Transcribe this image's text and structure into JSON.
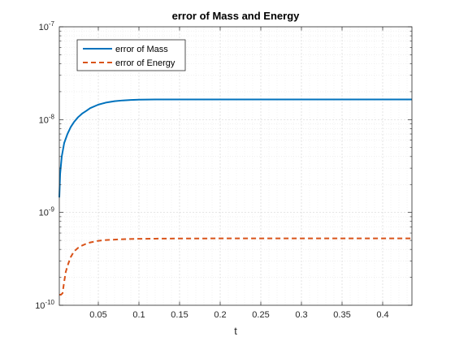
{
  "chart_data": {
    "type": "line",
    "title": "error of Mass and Energy",
    "xlabel": "t",
    "ylabel": "",
    "xlim": [
      0.002,
      0.436
    ],
    "ylim": [
      1e-10,
      1e-07
    ],
    "yscale": "log",
    "grid": true,
    "minor_grid": true,
    "legend_position": "top-left",
    "x_ticks": [
      0.05,
      0.1,
      0.15,
      0.2,
      0.25,
      0.3,
      0.35,
      0.4
    ],
    "x_tick_labels": [
      "0.05",
      "0.1",
      "0.15",
      "0.2",
      "0.25",
      "0.3",
      "0.35",
      "0.4"
    ],
    "y_ticks": [
      {
        "value": 1e-10,
        "base": "10",
        "exp": "-10"
      },
      {
        "value": 1e-09,
        "base": "10",
        "exp": "-9"
      },
      {
        "value": 1e-08,
        "base": "10",
        "exp": "-8"
      },
      {
        "value": 1e-07,
        "base": "10",
        "exp": "-7"
      }
    ],
    "series": [
      {
        "name": "error of Mass",
        "color": "#0072BD",
        "style": "solid",
        "x": [
          0.002,
          0.003,
          0.005,
          0.008,
          0.012,
          0.016,
          0.02,
          0.025,
          0.03,
          0.035,
          0.04,
          0.05,
          0.06,
          0.07,
          0.08,
          0.09,
          0.1,
          0.12,
          0.15,
          0.2,
          0.25,
          0.3,
          0.35,
          0.4,
          0.436
        ],
        "y": [
          1.45e-09,
          2.6e-09,
          4e-09,
          5.6e-09,
          7e-09,
          8.3e-09,
          9.4e-09,
          1.06e-08,
          1.16e-08,
          1.24e-08,
          1.33e-08,
          1.45e-08,
          1.53e-08,
          1.58e-08,
          1.61e-08,
          1.63e-08,
          1.64e-08,
          1.65e-08,
          1.65e-08,
          1.65e-08,
          1.65e-08,
          1.65e-08,
          1.65e-08,
          1.65e-08,
          1.65e-08
        ]
      },
      {
        "name": "error of Energy",
        "color": "#D95319",
        "style": "dashed",
        "x": [
          0.002,
          0.004,
          0.006,
          0.008,
          0.01,
          0.013,
          0.016,
          0.02,
          0.025,
          0.03,
          0.035,
          0.04,
          0.05,
          0.06,
          0.07,
          0.08,
          0.1,
          0.12,
          0.15,
          0.2,
          0.25,
          0.3,
          0.35,
          0.4,
          0.436
        ],
        "y": [
          1.3e-10,
          1.3e-10,
          1.35e-10,
          1.8e-10,
          2.3e-10,
          2.8e-10,
          3.3e-10,
          3.8e-10,
          4.15e-10,
          4.4e-10,
          4.6e-10,
          4.75e-10,
          4.95e-10,
          5.05e-10,
          5.1e-10,
          5.15e-10,
          5.2e-10,
          5.22e-10,
          5.24e-10,
          5.25e-10,
          5.25e-10,
          5.25e-10,
          5.25e-10,
          5.25e-10,
          5.25e-10
        ]
      }
    ]
  }
}
